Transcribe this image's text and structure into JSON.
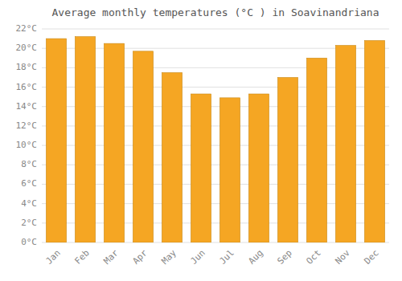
{
  "chart_data": {
    "type": "bar",
    "title": "Average monthly temperatures (°C ) in Soavinandriana",
    "categories": [
      "Jan",
      "Feb",
      "Mar",
      "Apr",
      "May",
      "Jun",
      "Jul",
      "Aug",
      "Sep",
      "Oct",
      "Nov",
      "Dec"
    ],
    "values": [
      21.0,
      21.2,
      20.5,
      19.7,
      17.5,
      15.3,
      14.9,
      15.3,
      17.0,
      19.0,
      20.3,
      20.8
    ],
    "color": "#F5A623",
    "ylim": [
      0,
      22
    ],
    "yticks": [
      {
        "value": 0,
        "label": "0°C"
      },
      {
        "value": 2,
        "label": "2°C"
      },
      {
        "value": 4,
        "label": "4°C"
      },
      {
        "value": 6,
        "label": "6°C"
      },
      {
        "value": 8,
        "label": "8°C"
      },
      {
        "value": 10,
        "label": "10°C"
      },
      {
        "value": 12,
        "label": "12°C"
      },
      {
        "value": 14,
        "label": "14°C"
      },
      {
        "value": 16,
        "label": "16°C"
      },
      {
        "value": 18,
        "label": "18°C"
      },
      {
        "value": 20,
        "label": "20°C"
      },
      {
        "value": 22,
        "label": "22°C"
      }
    ],
    "grid": true
  }
}
